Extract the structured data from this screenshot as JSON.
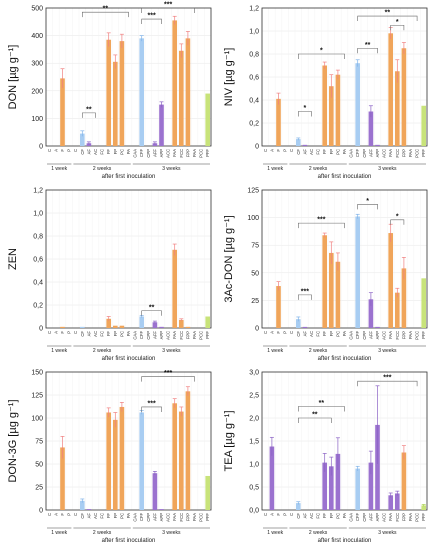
{
  "colors": {
    "orange": "#F0A55A",
    "blue": "#A8CDF2",
    "purple": "#9B72CF",
    "green": "#C8E37A",
    "err_orange": "#F08080",
    "err_blue": "#7FB2E8",
    "err_purple": "#8A62C4",
    "err_green": "#A8D050"
  },
  "categories": [
    "C",
    "A",
    "F",
    "P",
    "C",
    "CF",
    "AF",
    "AC",
    "FC",
    "FF",
    "FP",
    "PC",
    "PA",
    "CAA",
    "CFF",
    "CPP",
    "AFF",
    "APP",
    "ACC",
    "FAA",
    "FCC",
    "FPP",
    "PAA",
    "PCC",
    "PFF"
  ],
  "bar_colors": [
    "none",
    "none",
    "orange",
    "none",
    "none",
    "blue",
    "purple",
    "none",
    "none",
    "orange",
    "orange",
    "orange",
    "none",
    "none",
    "blue",
    "none",
    "purple",
    "purple",
    "none",
    "orange",
    "orange",
    "orange",
    "none",
    "none",
    "green"
  ],
  "group_labels": [
    "1 week",
    "2 weeks",
    "3 weeks"
  ],
  "xlabel": "after first inoculation",
  "chart_data": [
    {
      "type": "bar",
      "ylabel": "DON [µg g⁻¹]",
      "ylim": [
        0,
        500
      ],
      "yticks": [
        "0",
        "100",
        "200",
        "300",
        "400",
        "500"
      ],
      "values": [
        0,
        0,
        245,
        0,
        0,
        45,
        10,
        5,
        10,
        385,
        305,
        380,
        0,
        0,
        390,
        5,
        10,
        150,
        0,
        455,
        345,
        390,
        0,
        0,
        190
      ],
      "errors": [
        0,
        0,
        35,
        0,
        0,
        10,
        5,
        0,
        5,
        25,
        25,
        25,
        0,
        0,
        10,
        0,
        5,
        10,
        0,
        15,
        25,
        25,
        0,
        0,
        0
      ],
      "brackets": [
        {
          "from": 5,
          "to": 7,
          "level": 120,
          "label": "**"
        },
        {
          "from": 5,
          "to": 12,
          "level": 485,
          "label": "**"
        },
        {
          "from": 14,
          "to": 17,
          "level": 460,
          "label": "***"
        },
        {
          "from": 14,
          "to": 22,
          "level": 500,
          "label": "***"
        }
      ]
    },
    {
      "type": "bar",
      "ylabel": "NIV [µg g⁻¹]",
      "ylim": [
        0,
        1.2
      ],
      "yticks": [
        "0",
        "0,2",
        "0,4",
        "0,6",
        "0,8",
        "1,0",
        "1,2"
      ],
      "values": [
        0,
        0,
        0.41,
        0,
        0,
        0.06,
        0.01,
        0,
        0,
        0.7,
        0.52,
        0.62,
        0,
        0,
        0.72,
        0,
        0.3,
        0.01,
        0,
        0.98,
        0.65,
        0.85,
        0,
        0,
        0.35
      ],
      "errors": [
        0,
        0,
        0.05,
        0,
        0,
        0.01,
        0,
        0,
        0,
        0.03,
        0.1,
        0.04,
        0,
        0,
        0.03,
        0,
        0.05,
        0,
        0,
        0.05,
        0.1,
        0.05,
        0,
        0,
        0
      ],
      "brackets": [
        {
          "from": 5,
          "to": 7,
          "level": 0.3,
          "label": "*"
        },
        {
          "from": 5,
          "to": 12,
          "level": 0.8,
          "label": "*"
        },
        {
          "from": 14,
          "to": 17,
          "level": 0.85,
          "label": "**"
        },
        {
          "from": 19,
          "to": 21,
          "level": 1.05,
          "label": "*"
        },
        {
          "from": 14,
          "to": 23,
          "level": 1.13,
          "label": "**"
        }
      ]
    },
    {
      "type": "bar",
      "ylabel": "ZEN",
      "ylim": [
        0,
        1.2
      ],
      "yticks": [
        "0",
        "0,2",
        "0,4",
        "0,6",
        "0,8",
        "1,0",
        "1,2"
      ],
      "values": [
        0,
        0,
        0.01,
        0,
        0,
        0.01,
        0,
        0,
        0,
        0.08,
        0.02,
        0.02,
        0,
        0,
        0.1,
        0,
        0.05,
        0.01,
        0,
        0.68,
        0.07,
        0.01,
        0,
        0,
        0.1
      ],
      "errors": [
        0,
        0,
        0,
        0,
        0,
        0,
        0,
        0,
        0,
        0.02,
        0,
        0,
        0,
        0,
        0.01,
        0,
        0.01,
        0,
        0,
        0.05,
        0.01,
        0,
        0,
        0,
        0
      ],
      "brackets": [
        {
          "from": 14,
          "to": 17,
          "level": 0.15,
          "label": "**"
        }
      ]
    },
    {
      "type": "bar",
      "ylabel": "3Ac-DON [µg g⁻¹]",
      "ylim": [
        0,
        125
      ],
      "yticks": [
        "0",
        "25",
        "50",
        "75",
        "100",
        "125"
      ],
      "values": [
        0,
        0,
        38,
        0,
        0,
        8,
        1,
        0,
        0,
        84,
        68,
        60,
        0,
        0,
        101,
        3,
        26,
        1,
        0,
        86,
        32,
        54,
        0,
        0,
        45
      ],
      "errors": [
        0,
        0,
        4,
        0,
        0,
        2,
        0,
        0,
        0,
        2,
        10,
        8,
        0,
        0,
        2,
        2,
        6,
        0,
        0,
        8,
        4,
        10,
        0,
        0,
        0
      ],
      "brackets": [
        {
          "from": 5,
          "to": 7,
          "level": 30,
          "label": "***"
        },
        {
          "from": 5,
          "to": 12,
          "level": 95,
          "label": "***"
        },
        {
          "from": 14,
          "to": 17,
          "level": 112,
          "label": "*"
        },
        {
          "from": 19,
          "to": 21,
          "level": 98,
          "label": "*"
        }
      ]
    },
    {
      "type": "bar",
      "ylabel": "DON-3G [µg g⁻¹]",
      "ylim": [
        0,
        150
      ],
      "yticks": [
        "0",
        "25",
        "50",
        "75",
        "100",
        "125",
        "150"
      ],
      "values": [
        0,
        0,
        68,
        0,
        0,
        10,
        1,
        1,
        0,
        106,
        98,
        112,
        0,
        0,
        106,
        1,
        40,
        1,
        0,
        116,
        107,
        129,
        0,
        0,
        37
      ],
      "errors": [
        0,
        0,
        12,
        0,
        0,
        2,
        0,
        0,
        0,
        5,
        8,
        5,
        0,
        0,
        2,
        0,
        2,
        0,
        0,
        5,
        5,
        5,
        0,
        0,
        0
      ],
      "brackets": [
        {
          "from": 14,
          "to": 17,
          "level": 112,
          "label": "***"
        },
        {
          "from": 14,
          "to": 22,
          "level": 145,
          "label": "***"
        }
      ]
    },
    {
      "type": "bar",
      "ylabel": "TEA [µg g⁻¹]",
      "ylim": [
        0,
        3.0
      ],
      "yticks": [
        "0,0",
        "0,5",
        "1,0",
        "1,5",
        "2,0",
        "2,5",
        "3,0"
      ],
      "values": [
        0,
        1.38,
        0,
        0,
        0,
        0.15,
        0,
        0,
        0,
        1.03,
        0.95,
        1.22,
        0,
        0,
        0.9,
        0,
        1.03,
        1.85,
        0,
        0.32,
        0.36,
        1.25,
        0,
        0,
        0.1
      ],
      "errors": [
        0,
        0.2,
        0,
        0,
        0,
        0.03,
        0,
        0,
        0,
        0.2,
        0.2,
        0.35,
        0,
        0,
        0.05,
        0,
        0.25,
        0.85,
        0,
        0.05,
        0.05,
        0.15,
        0,
        0,
        0.02
      ],
      "bar_colors_override": [
        "none",
        "purple",
        "none",
        "none",
        "none",
        "blue",
        "none",
        "none",
        "none",
        "purple",
        "purple",
        "purple",
        "none",
        "none",
        "blue",
        "none",
        "purple",
        "purple",
        "none",
        "purple",
        "purple",
        "orange",
        "none",
        "none",
        "green"
      ],
      "brackets": [
        {
          "from": 5,
          "to": 10,
          "level": 2.0,
          "label": "**"
        },
        {
          "from": 5,
          "to": 12,
          "level": 2.25,
          "label": "**"
        },
        {
          "from": 14,
          "to": 23,
          "level": 2.8,
          "label": "***"
        }
      ]
    }
  ]
}
